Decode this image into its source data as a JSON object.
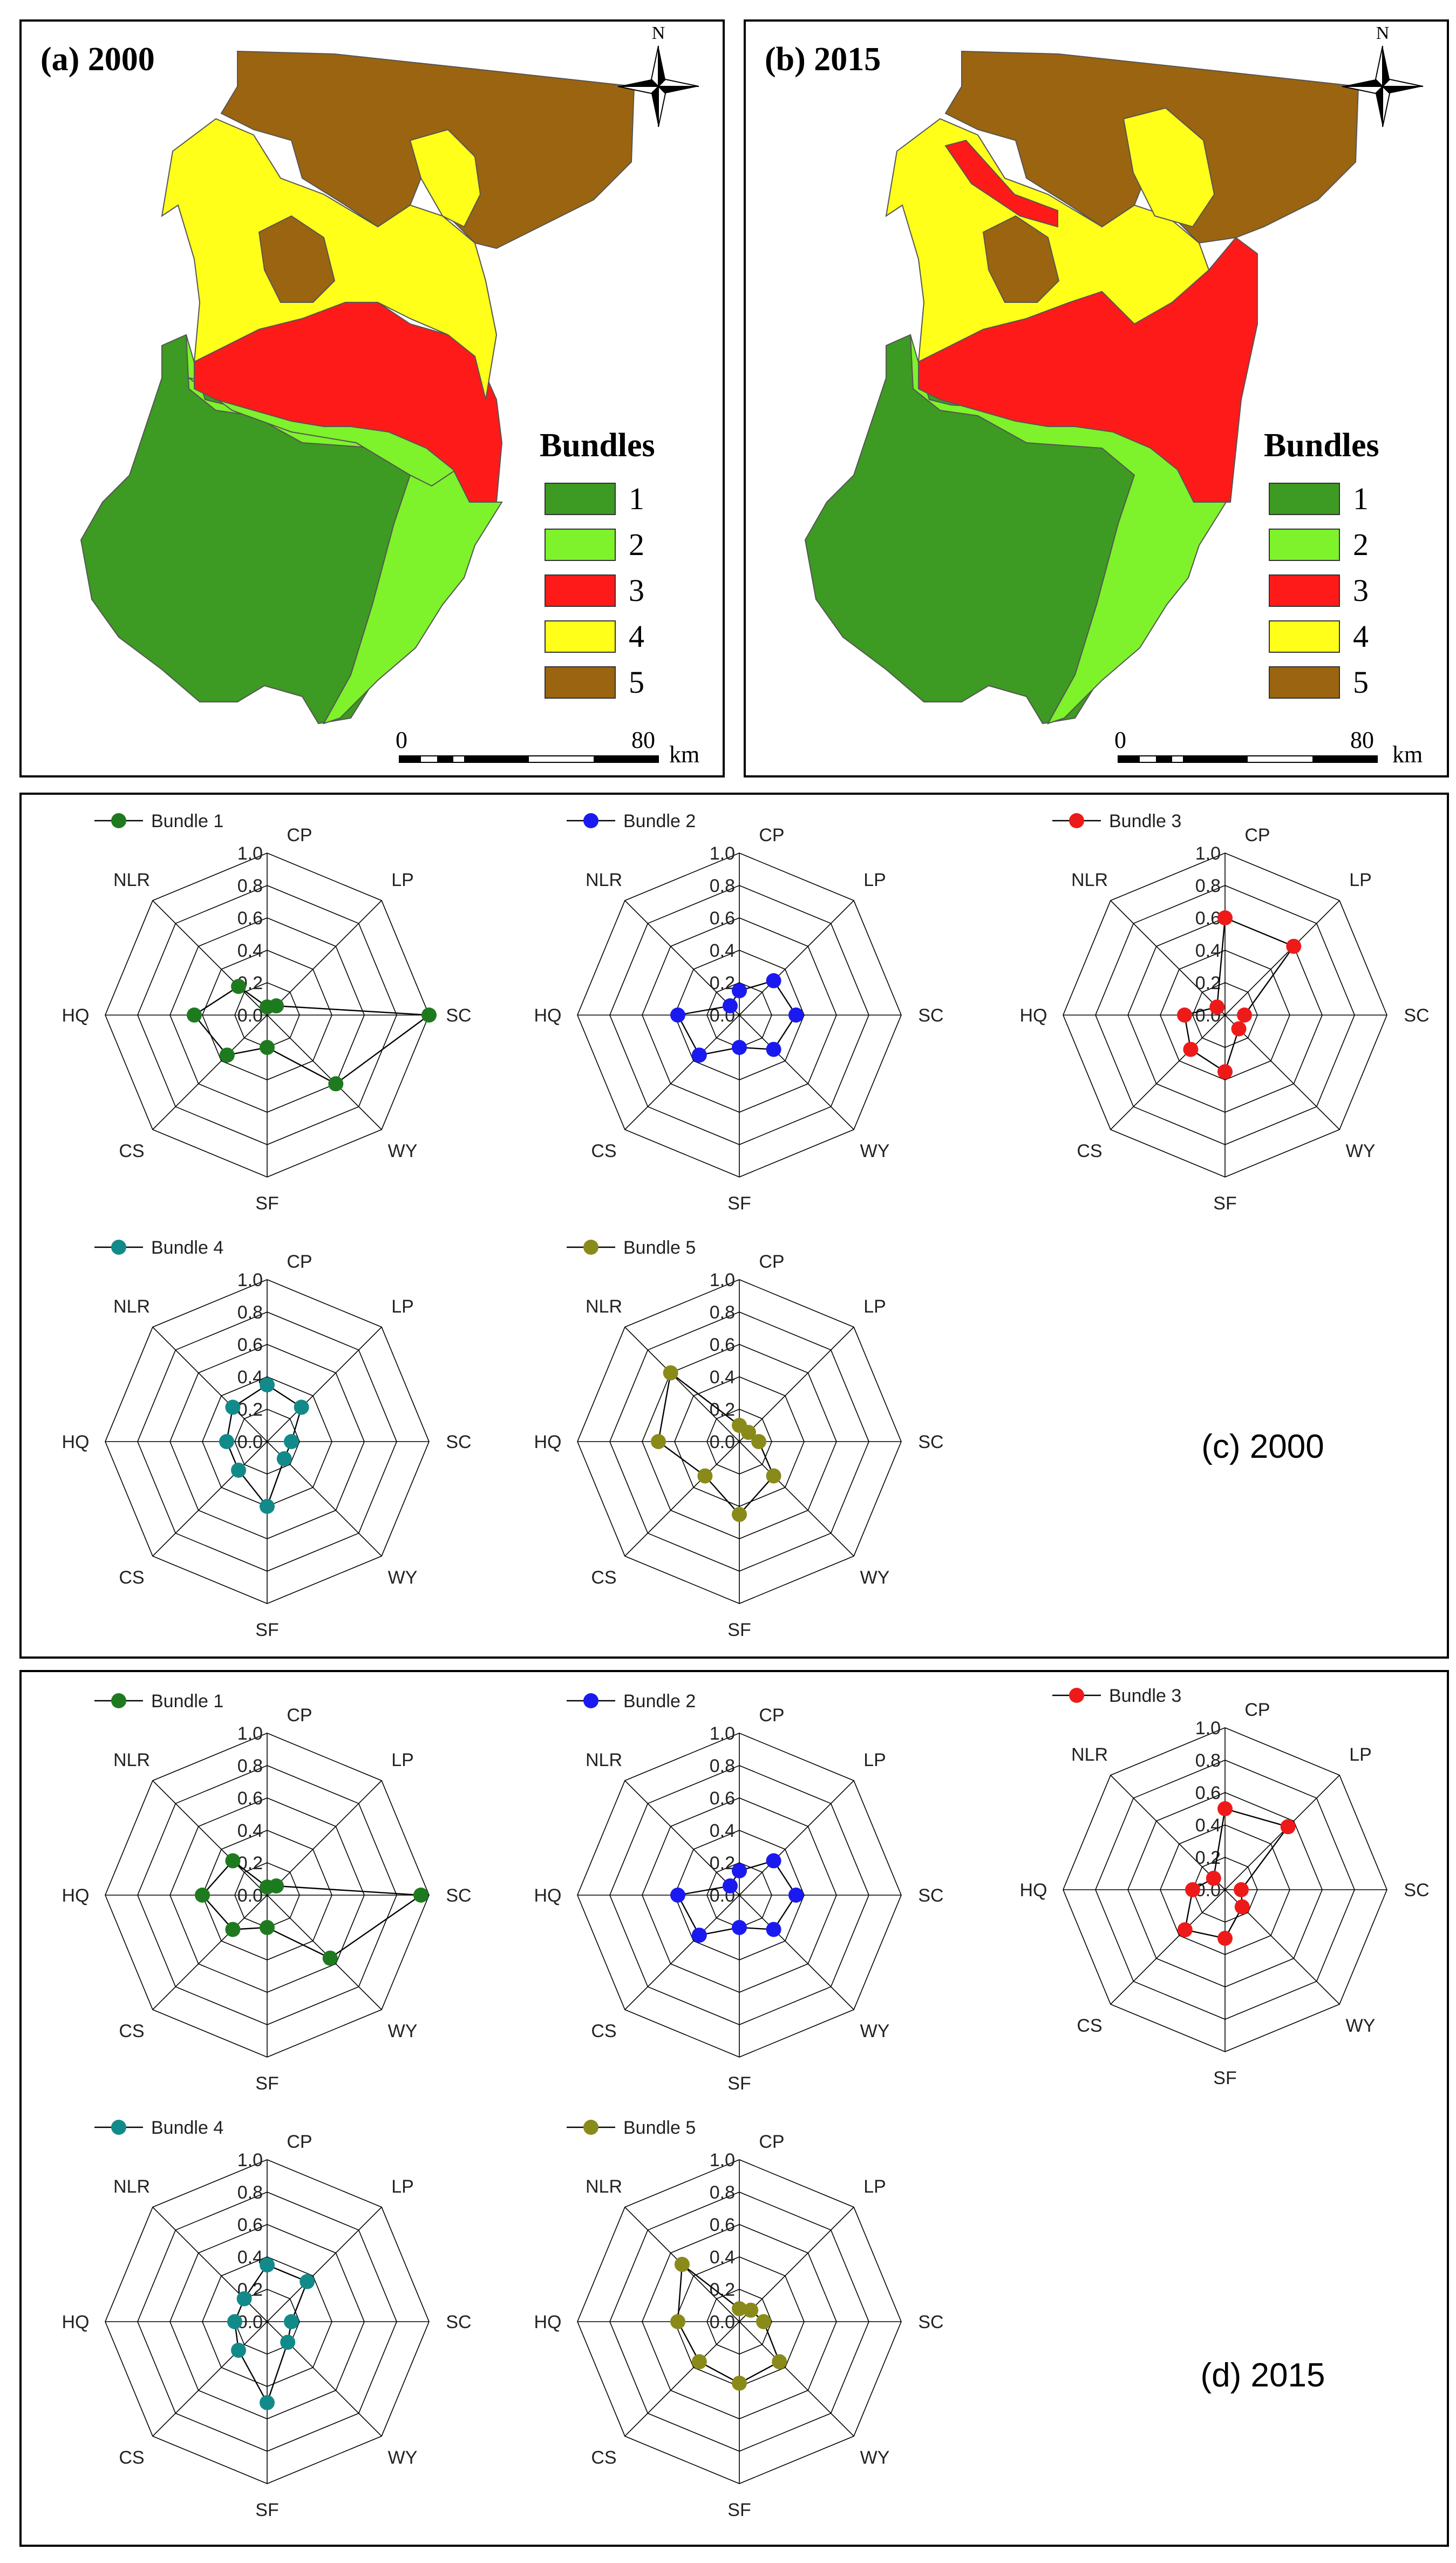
{
  "maps": [
    {
      "id": "a",
      "label": "(a) 2000",
      "year": "2000"
    },
    {
      "id": "b",
      "label": "(b) 2015",
      "year": "2015"
    }
  ],
  "legend": {
    "title": "Bundles",
    "items": [
      {
        "label": "1",
        "color": "#3d9a22"
      },
      {
        "label": "2",
        "color": "#7ef22a"
      },
      {
        "label": "3",
        "color": "#ff1a1a"
      },
      {
        "label": "4",
        "color": "#ffff1a"
      },
      {
        "label": "5",
        "color": "#9b6410"
      }
    ]
  },
  "scale_bar": {
    "start": "0",
    "end": "80",
    "unit": "km"
  },
  "north_label": "N",
  "radar_axes": [
    "CP",
    "LP",
    "SC",
    "WY",
    "SF",
    "CS",
    "HQ",
    "NLR"
  ],
  "radar_ticks": [
    "0.0",
    "0.2",
    "0.4",
    "0.6",
    "0.8",
    "1.0"
  ],
  "chart_data": [
    {
      "type": "radar",
      "title": "(c) 2000",
      "axes": [
        "CP",
        "LP",
        "SC",
        "WY",
        "SF",
        "CS",
        "HQ",
        "NLR"
      ],
      "rlim": [
        0,
        1
      ],
      "series": [
        {
          "name": "Bundle 1",
          "color": "#1e7a1e",
          "values": [
            0.05,
            0.08,
            1.0,
            0.6,
            0.2,
            0.35,
            0.45,
            0.25
          ]
        },
        {
          "name": "Bundle 2",
          "color": "#1a1af0",
          "values": [
            0.15,
            0.3,
            0.35,
            0.3,
            0.2,
            0.35,
            0.38,
            0.08
          ]
        },
        {
          "name": "Bundle 3",
          "color": "#ee1a1a",
          "values": [
            0.6,
            0.6,
            0.12,
            0.12,
            0.35,
            0.3,
            0.25,
            0.07
          ]
        },
        {
          "name": "Bundle 4",
          "color": "#138a8a",
          "values": [
            0.35,
            0.3,
            0.15,
            0.15,
            0.4,
            0.25,
            0.25,
            0.3
          ]
        },
        {
          "name": "Bundle 5",
          "color": "#8a8a1a",
          "values": [
            0.1,
            0.08,
            0.12,
            0.3,
            0.45,
            0.3,
            0.5,
            0.6
          ]
        }
      ]
    },
    {
      "type": "radar",
      "title": "(d) 2015",
      "axes": [
        "CP",
        "LP",
        "SC",
        "WY",
        "SF",
        "CS",
        "HQ",
        "NLR"
      ],
      "rlim": [
        0,
        1
      ],
      "series": [
        {
          "name": "Bundle 1",
          "color": "#1e7a1e",
          "values": [
            0.05,
            0.08,
            0.95,
            0.55,
            0.2,
            0.3,
            0.4,
            0.3
          ]
        },
        {
          "name": "Bundle 2",
          "color": "#1a1af0",
          "values": [
            0.15,
            0.3,
            0.35,
            0.3,
            0.2,
            0.35,
            0.38,
            0.08
          ]
        },
        {
          "name": "Bundle 3",
          "color": "#ee1a1a",
          "values": [
            0.5,
            0.55,
            0.1,
            0.15,
            0.3,
            0.35,
            0.2,
            0.1
          ]
        },
        {
          "name": "Bundle 4",
          "color": "#138a8a",
          "values": [
            0.35,
            0.35,
            0.15,
            0.18,
            0.5,
            0.25,
            0.2,
            0.2
          ]
        },
        {
          "name": "Bundle 5",
          "color": "#8a8a1a",
          "values": [
            0.08,
            0.1,
            0.15,
            0.35,
            0.38,
            0.35,
            0.38,
            0.5
          ]
        }
      ]
    }
  ]
}
